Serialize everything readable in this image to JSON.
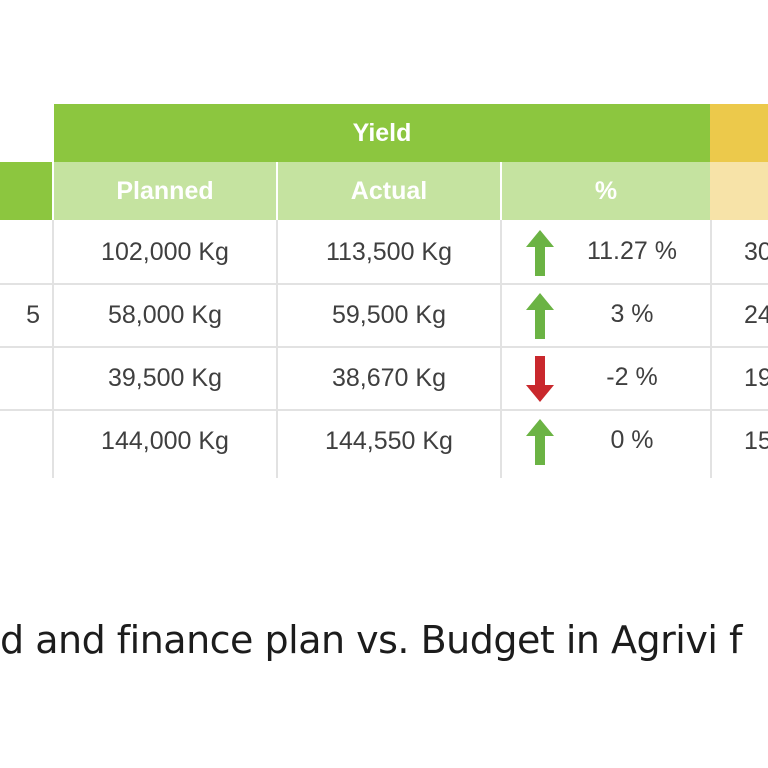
{
  "table": {
    "group_header": "Yield",
    "columns": [
      "Planned",
      "Actual",
      "%"
    ],
    "rows": [
      {
        "left_partial": "",
        "planned": "102,000 Kg",
        "actual": "113,500 Kg",
        "trend": "up-arrow-icon",
        "percent": "11.27 %",
        "right_partial": "30"
      },
      {
        "left_partial": "5",
        "planned": "58,000 Kg",
        "actual": "59,500 Kg",
        "trend": "up-arrow-icon",
        "percent": "3 %",
        "right_partial": "24"
      },
      {
        "left_partial": "",
        "planned": "39,500 Kg",
        "actual": "38,670 Kg",
        "trend": "down-arrow-icon",
        "percent": "-2 %",
        "right_partial": "19"
      },
      {
        "left_partial": "",
        "planned": "144,000 Kg",
        "actual": "144,550 Kg",
        "trend": "up-arrow-icon",
        "percent": "0 %",
        "right_partial": "15"
      }
    ]
  },
  "caption": "d and finance plan vs. Budget in Agrivi f",
  "colors": {
    "header_green": "#8cc63f",
    "subheader_green": "#c5e3a0",
    "header_yellow": "#ecc94b",
    "subheader_yellow": "#f7e3a8",
    "up_arrow": "#6bb344",
    "down_arrow": "#c9282d"
  }
}
